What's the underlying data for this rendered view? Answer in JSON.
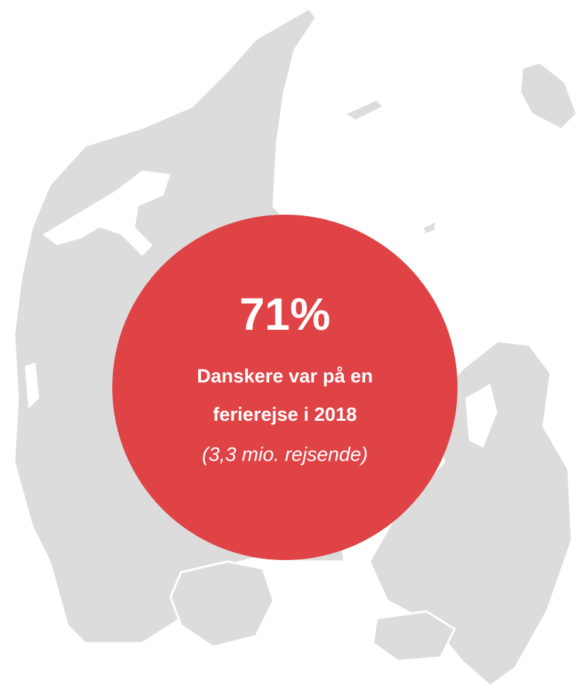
{
  "headline": "71%",
  "lines": [
    "Danskere var på en",
    "ferierejse i 2018"
  ],
  "note": "(3,3 mio. rejsende)"
}
